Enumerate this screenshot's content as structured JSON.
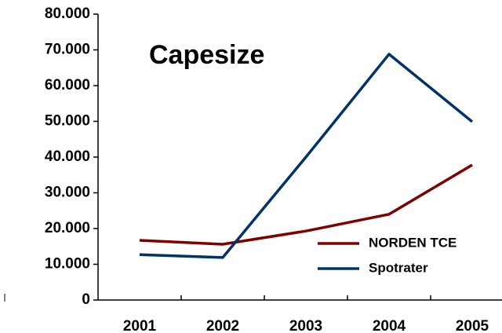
{
  "chart_data": {
    "type": "line",
    "title": "Capesize",
    "categories": [
      "2001",
      "2002",
      "2003",
      "2004",
      "2005"
    ],
    "series": [
      {
        "name": "NORDEN TCE",
        "color": "#800000",
        "values": [
          16700,
          15600,
          19300,
          24000,
          37800
        ]
      },
      {
        "name": "Spotrater",
        "color": "#003366",
        "values": [
          12700,
          11900,
          40000,
          68800,
          49900
        ]
      }
    ],
    "ylim": [
      0,
      80000
    ],
    "yticks": [
      0,
      {
        "value": 10000,
        "label": "10.000"
      },
      {
        "value": 20000,
        "label": "20.000"
      },
      {
        "value": 30000,
        "label": "30.000"
      },
      {
        "value": 40000,
        "label": "40.000"
      },
      {
        "value": 50000,
        "label": "50.000"
      },
      {
        "value": 60000,
        "label": "60.000"
      },
      {
        "value": 70000,
        "label": "70.000"
      },
      {
        "value": 80000,
        "label": "80.000"
      }
    ]
  }
}
